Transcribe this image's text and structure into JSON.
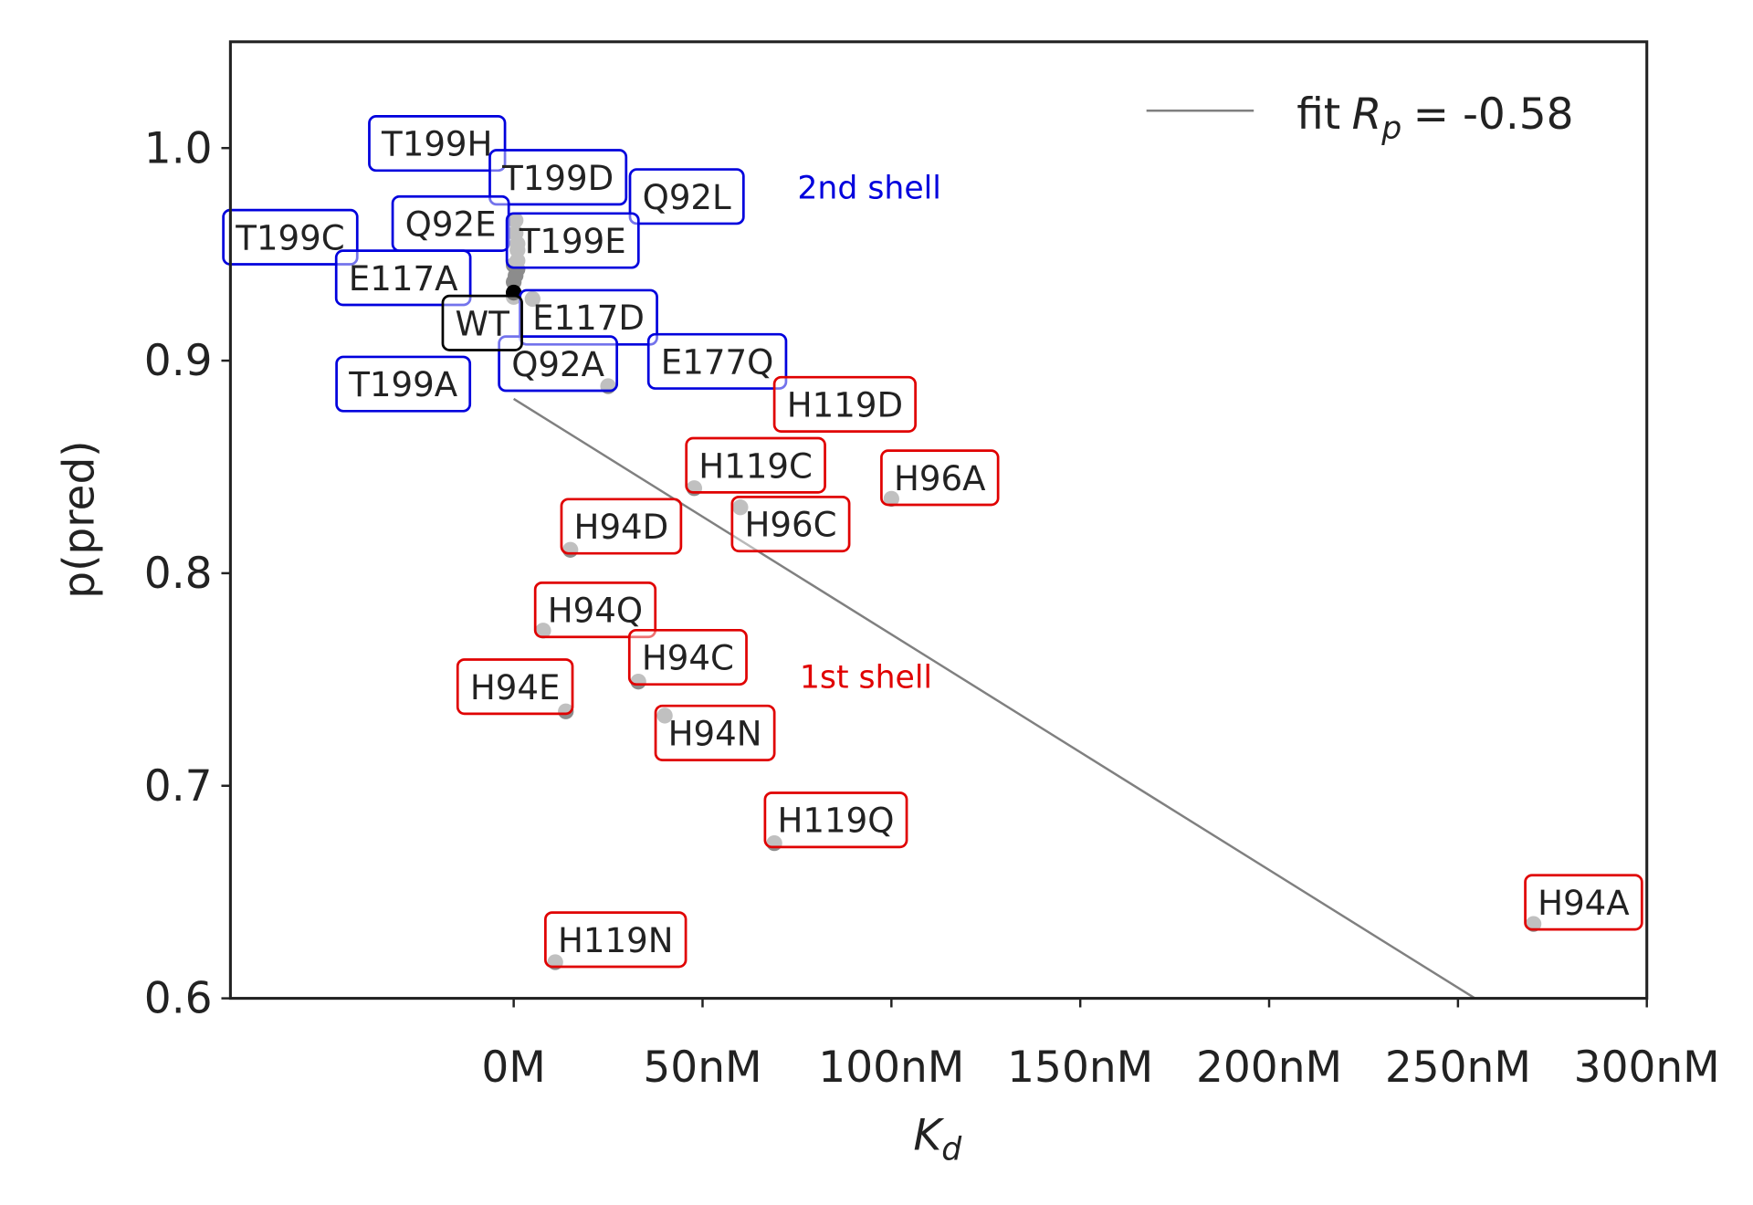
{
  "chart_data": {
    "type": "scatter",
    "ylabel": "p(pred)",
    "xlabel": "K",
    "xlabel_subscript": "d",
    "xlim": [
      -75,
      300
    ],
    "ylim": [
      0.6,
      1.05
    ],
    "xticks": [
      {
        "value": 0,
        "label": "0M"
      },
      {
        "value": 50,
        "label": "50nM"
      },
      {
        "value": 100,
        "label": "100nM"
      },
      {
        "value": 150,
        "label": "150nM"
      },
      {
        "value": 200,
        "label": "200nM"
      },
      {
        "value": 250,
        "label": "250nM"
      },
      {
        "value": 300,
        "label": "300nM"
      }
    ],
    "yticks": [
      0.6,
      0.7,
      0.8,
      0.9,
      {
        "value": 1.0,
        "label": "1.0"
      }
    ],
    "point_color": "#8c8c8c",
    "series": [
      {
        "name": "2nd shell",
        "color": "#0000dd",
        "labels": [
          "T199H",
          "T199D",
          "Q92L",
          "T199C",
          "Q92E",
          "T199E",
          "E117A",
          "E117D",
          "Q92A",
          "E177Q",
          "T199A"
        ],
        "x": [
          0.5,
          0.5,
          1,
          0,
          0.5,
          1,
          0,
          5,
          25,
          1,
          0
        ],
        "values": [
          0.966,
          0.96,
          0.955,
          0.945,
          0.94,
          0.947,
          0.937,
          0.929,
          0.888,
          0.943,
          0.93
        ]
      },
      {
        "name": "1st shell",
        "color": "#e00000",
        "labels": [
          "H119D",
          "H119C",
          "H96A",
          "H96C",
          "H94D",
          "H94Q",
          "H94C",
          "H94E",
          "H94N",
          "H119Q",
          "H119N",
          "H94A"
        ],
        "x": [
          1,
          47.8,
          100,
          60,
          15,
          7.8,
          33,
          13.8,
          40,
          69,
          11,
          270
        ],
        "values": [
          0.952,
          0.84,
          0.835,
          0.831,
          0.811,
          0.773,
          0.749,
          0.735,
          0.733,
          0.673,
          0.617,
          0.635
        ]
      },
      {
        "color": "#000000",
        "labels": [
          "WT"
        ],
        "x": [
          0
        ],
        "values": [
          0.932
        ]
      }
    ],
    "fit": {
      "name": "fit",
      "stat_symbol": "R",
      "stat_subscript": "p",
      "stat_text": "= -0.58",
      "color": "#808080",
      "x": [
        0,
        254.5
      ],
      "values": [
        0.882,
        0.6
      ]
    }
  }
}
